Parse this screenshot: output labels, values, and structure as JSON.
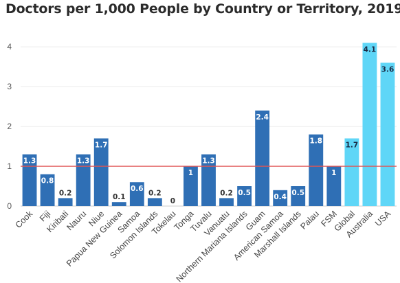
{
  "chart_data": {
    "type": "bar",
    "title": "Doctors per 1,000 People by Country or Territory, 2019",
    "xlabel": "",
    "ylabel": "",
    "ylim": [
      0,
      4.4
    ],
    "yticks": [
      0,
      1,
      2,
      3,
      4
    ],
    "grid": true,
    "legend": "none",
    "reference_line": {
      "value": 1,
      "color": "#e05555"
    },
    "categories": [
      "Cook",
      "Fiji",
      "Kiribati",
      "Nauru",
      "Niue",
      "Papua New Guinea",
      "Samoa",
      "Solomon Islands",
      "Tokelau",
      "Tonga",
      "Tuvalu",
      "Vanuatu",
      "Northern Mariana Islands",
      "Guam",
      "American Samoa",
      "Marshall Islands",
      "Palau",
      "FSM",
      "Global",
      "Australia",
      "USA"
    ],
    "values": [
      1.3,
      0.8,
      0.2,
      1.3,
      1.7,
      0.1,
      0.6,
      0.2,
      0,
      1,
      1.3,
      0.2,
      0.5,
      2.4,
      0.4,
      0.5,
      1.8,
      1,
      1.7,
      4.1,
      3.6
    ],
    "value_labels": [
      "1.3",
      "0.8",
      "0.2",
      "1.3",
      "1.7",
      "0.1",
      "0.6",
      "0.2",
      "0",
      "1",
      "1.3",
      "0.2",
      "0.5",
      "2.4",
      "0.4",
      "0.5",
      "1.8",
      "1",
      "1.7",
      "4.1",
      "3.6"
    ],
    "highlight": [
      false,
      false,
      false,
      false,
      false,
      false,
      false,
      false,
      false,
      false,
      false,
      false,
      false,
      false,
      false,
      false,
      false,
      false,
      true,
      true,
      true
    ],
    "colors": {
      "bar": "#2f6fb5",
      "bar_highlight": "#5fd6f7",
      "grid": "#ebebeb",
      "axis": "#cccccc"
    }
  }
}
